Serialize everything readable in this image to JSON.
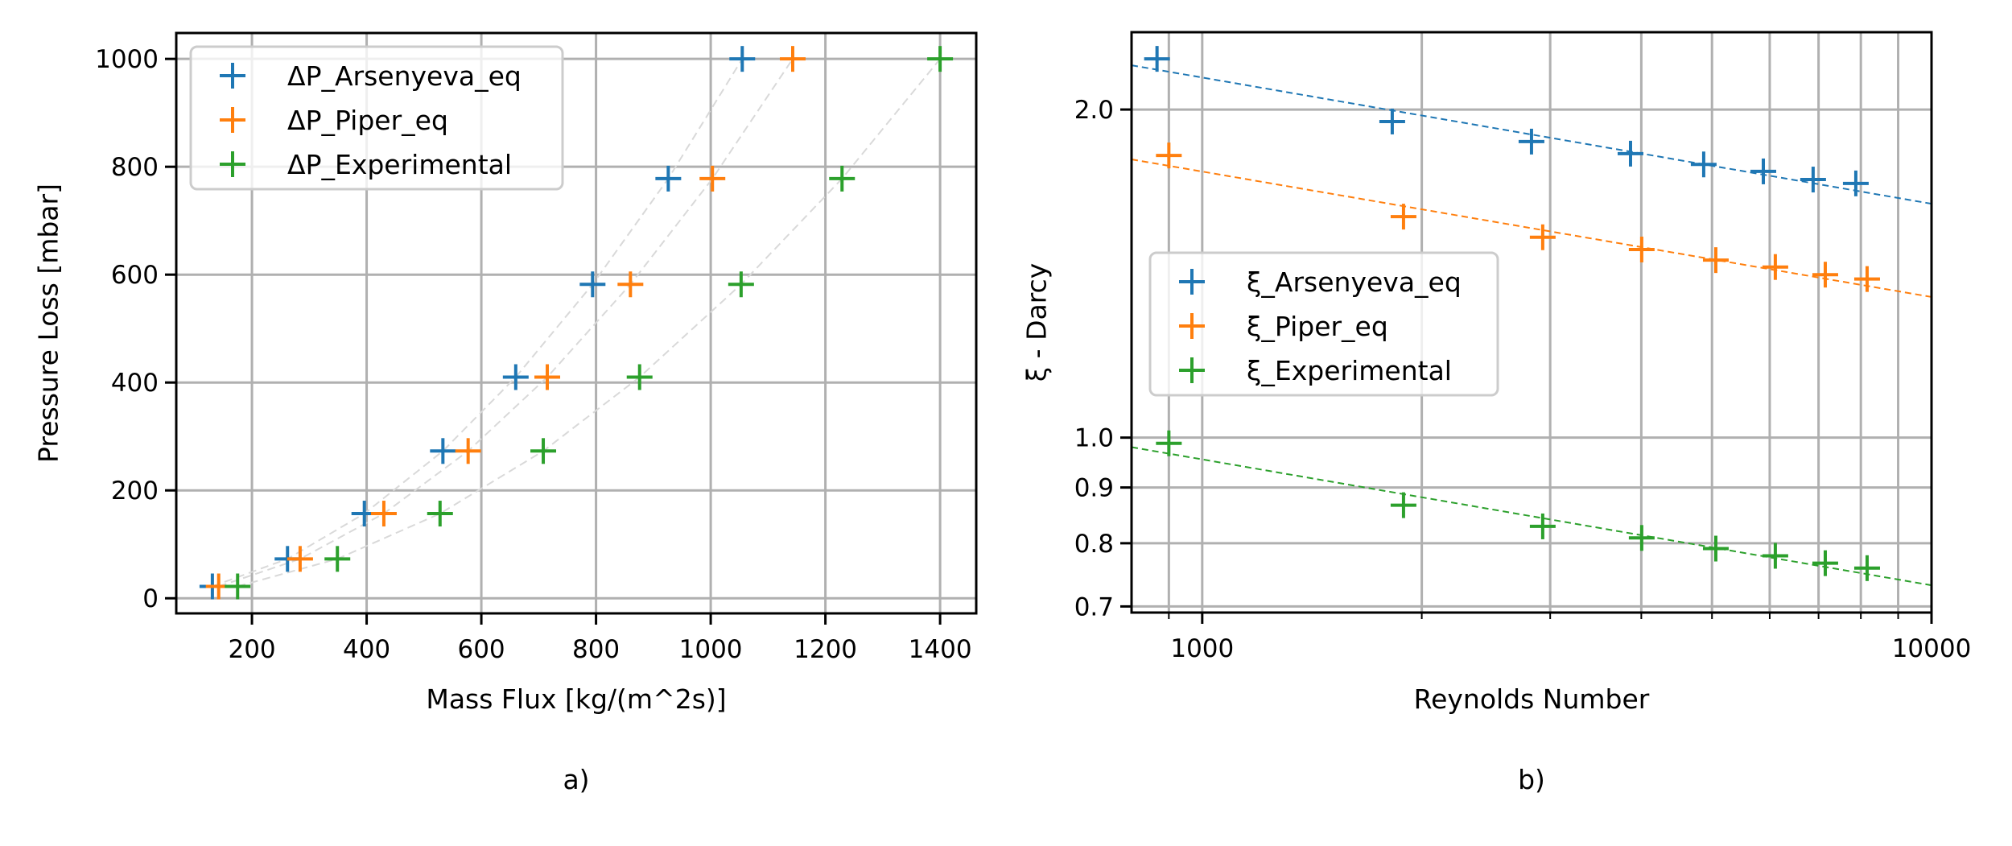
{
  "chart_data": [
    {
      "id": "a",
      "type": "scatter",
      "panel_label": "a)",
      "title": "",
      "xlabel": "Mass Flux [kg/(m^2s)]",
      "ylabel": "Pressure Loss [mbar]",
      "xscale": "linear",
      "yscale": "linear",
      "xlim": [
        68,
        1463
      ],
      "ylim": [
        -28,
        1048
      ],
      "xticks": [
        200,
        400,
        600,
        800,
        1000,
        1200,
        1400
      ],
      "xtick_labels": [
        "200",
        "400",
        "600",
        "800",
        "1000",
        "1200",
        "1400"
      ],
      "yticks": [
        0,
        200,
        400,
        600,
        800,
        1000
      ],
      "ytick_labels": [
        "0",
        "200",
        "400",
        "600",
        "800",
        "1000"
      ],
      "grid": true,
      "legend_position": "top-left",
      "marker": "plus",
      "connector": "light-gray dashed curve through each series",
      "series": [
        {
          "name": "ΔP_Arsenyeva_eq",
          "color": "#1f77b4",
          "x": [
            131,
            262,
            396,
            533,
            660,
            794,
            926,
            1055
          ],
          "y": [
            22,
            73,
            157,
            273,
            410,
            582,
            778,
            1000
          ]
        },
        {
          "name": "ΔP_Piper_eq",
          "color": "#ff7f0e",
          "x": [
            142,
            284,
            430,
            577,
            715,
            860,
            1003,
            1143
          ],
          "y": [
            22,
            73,
            157,
            273,
            410,
            582,
            778,
            1000
          ]
        },
        {
          "name": "ΔP_Experimental",
          "color": "#2ca02c",
          "x": [
            175,
            349,
            528,
            708,
            876,
            1053,
            1229,
            1400
          ],
          "y": [
            22,
            73,
            157,
            273,
            410,
            582,
            778,
            1000
          ]
        }
      ]
    },
    {
      "id": "b",
      "type": "scatter",
      "panel_label": "b)",
      "title": "",
      "xlabel": "Reynolds Number",
      "ylabel": "ξ - Darcy",
      "xscale": "log",
      "yscale": "log",
      "xlim": [
        800,
        10000
      ],
      "ylim": [
        0.691,
        2.355
      ],
      "xticks": [
        1000,
        10000
      ],
      "xtick_labels": [
        "1000",
        "10000"
      ],
      "xminor_ticks": [
        900,
        2000,
        3000,
        4000,
        5000,
        6000,
        7000,
        8000,
        9000
      ],
      "yticks": [
        0.7,
        0.8,
        0.9,
        1.0,
        2.0
      ],
      "ytick_labels": [
        "0.7",
        "0.8",
        "0.9",
        "1.0",
        "2.0"
      ],
      "grid": true,
      "legend_position": "center-left",
      "marker": "plus",
      "series": [
        {
          "name": "ξ_Arsenyeva_eq",
          "color": "#1f77b4",
          "x": [
            867,
            1822,
            2828,
            3866,
            4871,
            5880,
            6881,
            7874
          ],
          "y": [
            2.226,
            1.95,
            1.869,
            1.822,
            1.781,
            1.755,
            1.725,
            1.711
          ],
          "fit_line": {
            "x": [
              800,
              10000
            ],
            "y": [
              2.196,
              1.639
            ]
          }
        },
        {
          "name": "ξ_Piper_eq",
          "color": "#ff7f0e",
          "x": [
            900,
            1888,
            2930,
            4005,
            5061,
            6107,
            7150,
            8160
          ],
          "y": [
            1.815,
            1.595,
            1.527,
            1.488,
            1.455,
            1.434,
            1.411,
            1.398
          ],
          "fit_line": {
            "x": [
              800,
              10000
            ],
            "y": [
              1.8,
              1.346
            ]
          }
        },
        {
          "name": "ξ_Experimental",
          "color": "#2ca02c",
          "x": [
            900,
            1888,
            2930,
            4005,
            5061,
            6107,
            7150,
            8160
          ],
          "y": [
            0.988,
            0.867,
            0.829,
            0.809,
            0.791,
            0.779,
            0.767,
            0.759
          ],
          "fit_line": {
            "x": [
              800,
              10000
            ],
            "y": [
              0.98,
              0.732
            ]
          }
        }
      ]
    }
  ]
}
